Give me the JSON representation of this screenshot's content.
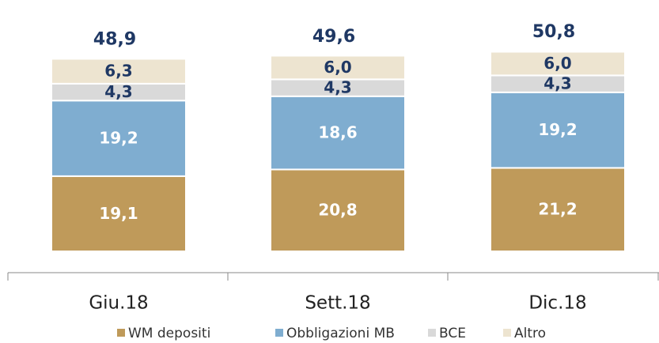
{
  "chart_data": {
    "type": "stacked_bar",
    "categories": [
      "Giu.18",
      "Sett.18",
      "Dic.18"
    ],
    "series": [
      {
        "name": "WM depositi",
        "color": "#bf9a5a",
        "values": [
          19.1,
          20.8,
          21.2
        ],
        "value_labels": [
          "19,1",
          "20,8",
          "21,2"
        ]
      },
      {
        "name": "Obbligazioni MB",
        "color": "#7fadd0",
        "values": [
          19.2,
          18.6,
          19.2
        ],
        "value_labels": [
          "19,2",
          "18,6",
          "19,2"
        ]
      },
      {
        "name": "BCE",
        "color": "#d9d9d9",
        "values": [
          4.3,
          4.3,
          4.3
        ],
        "value_labels": [
          "4,3",
          "4,3",
          "4,3"
        ]
      },
      {
        "name": "Altro",
        "color": "#ede4d0",
        "values": [
          6.3,
          6.0,
          6.0
        ],
        "value_labels": [
          "6,3",
          "6,0",
          "6,0"
        ]
      }
    ],
    "totals": [
      48.9,
      49.6,
      50.8
    ],
    "total_labels": [
      "48,9",
      "49,6",
      "50,8"
    ]
  }
}
